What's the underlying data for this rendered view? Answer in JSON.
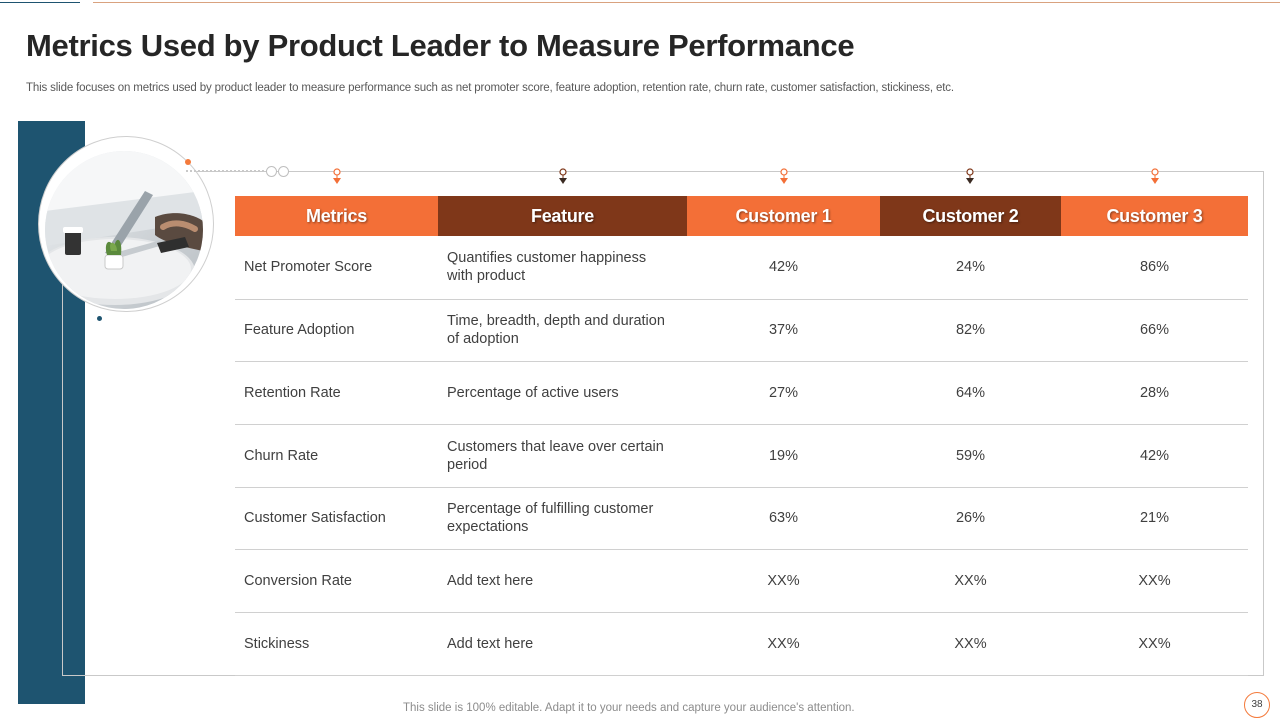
{
  "slide": {
    "title": "Metrics Used by Product Leader to Measure Performance",
    "subtitle": "This slide focuses on metrics used by product leader to measure performance such as net promoter score, feature adoption, retention rate, churn rate, customer satisfaction, stickiness, etc.",
    "footer": "This slide is 100% editable. Adapt it to your needs and capture your audience's attention.",
    "page_number": "38"
  },
  "table": {
    "headers": [
      "Metrics",
      "Feature",
      "Customer 1",
      "Customer 2",
      "Customer 3"
    ],
    "rows": [
      {
        "metric": "Net Promoter Score",
        "feature": "Quantifies customer happiness with product",
        "c1": "42%",
        "c2": "24%",
        "c3": "86%"
      },
      {
        "metric": "Feature Adoption",
        "feature": "Time, breadth, depth and duration of adoption",
        "c1": "37%",
        "c2": "82%",
        "c3": "66%"
      },
      {
        "metric": "Retention Rate",
        "feature": "Percentage of active users",
        "c1": "27%",
        "c2": "64%",
        "c3": "28%"
      },
      {
        "metric": "Churn Rate",
        "feature": "Customers that leave over certain period",
        "c1": "19%",
        "c2": "59%",
        "c3": "42%"
      },
      {
        "metric": "Customer Satisfaction",
        "feature": "Percentage of fulfilling customer expectations",
        "c1": "63%",
        "c2": "26%",
        "c3": "21%"
      },
      {
        "metric": "Conversion Rate",
        "feature": "Add text here",
        "c1": "XX%",
        "c2": "XX%",
        "c3": "XX%"
      },
      {
        "metric": "Stickiness",
        "feature": "Add text here",
        "c1": "XX%",
        "c2": "XX%",
        "c3": "XX%"
      }
    ]
  },
  "colors": {
    "accent_orange": "#f36f37",
    "accent_brown": "#7f3719",
    "side_bar_blue": "#1e5470"
  },
  "icons": {
    "header_pin": "map-pin-icon",
    "photo": "office-desk-photo"
  }
}
